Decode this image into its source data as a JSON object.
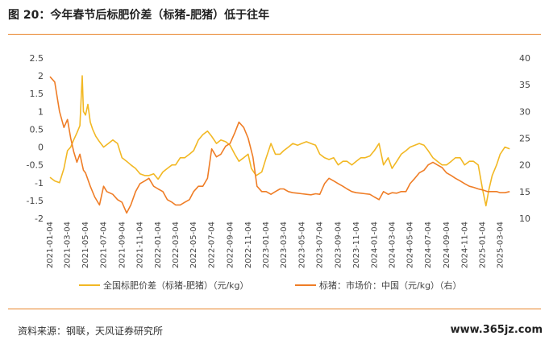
{
  "figure": {
    "title": "图 20：今年春节后标肥价差（标猪-肥猪）低于往年",
    "source": "资料来源：钢联，天风证券研究所",
    "watermark": "www.365jz.com"
  },
  "colors": {
    "accent": "#e8842a",
    "spread": "#f2b824",
    "price": "#ef7d26"
  },
  "chart_data": {
    "type": "line",
    "x_tick_labels": [
      "2021-01-04",
      "2021-03-04",
      "2021-05-04",
      "2021-07-04",
      "2021-09-04",
      "2021-11-04",
      "2022-01-04",
      "2022-03-04",
      "2022-05-04",
      "2022-07-04",
      "2022-09-04",
      "2022-11-04",
      "2023-01-04",
      "2023-03-04",
      "2023-05-04",
      "2023-07-04",
      "2023-09-04",
      "2023-11-04",
      "2024-01-04",
      "2024-03-04",
      "2024-05-04",
      "2024-07-04",
      "2024-09-04",
      "2024-11-04",
      "2025-01-04",
      "2025-03-04"
    ],
    "y_left": {
      "range": [
        -2,
        2.5
      ],
      "ticks": [
        "2.5",
        "2",
        "1.5",
        "1",
        "0.5",
        "0",
        "-0.5",
        "-1",
        "-1.5",
        "-2"
      ]
    },
    "y_right": {
      "range": [
        10,
        40
      ],
      "ticks": [
        "40",
        "35",
        "30",
        "25",
        "20",
        "15",
        "10"
      ]
    },
    "series": [
      {
        "name": "全国标肥价差（标猪-肥猪）（元/kg）",
        "axis": "left",
        "x": [
          "2021-01-04",
          "2021-01-20",
          "2021-02-05",
          "2021-02-20",
          "2021-03-04",
          "2021-03-15",
          "2021-03-25",
          "2021-04-05",
          "2021-04-15",
          "2021-04-23",
          "2021-04-27",
          "2021-05-04",
          "2021-05-12",
          "2021-05-20",
          "2021-05-28",
          "2021-06-08",
          "2021-06-20",
          "2021-07-04",
          "2021-07-20",
          "2021-08-04",
          "2021-08-20",
          "2021-09-04",
          "2021-09-20",
          "2021-10-04",
          "2021-10-20",
          "2021-11-04",
          "2021-11-20",
          "2021-12-04",
          "2021-12-20",
          "2022-01-04",
          "2022-01-20",
          "2022-02-04",
          "2022-02-20",
          "2022-03-04",
          "2022-03-20",
          "2022-04-04",
          "2022-04-20",
          "2022-05-04",
          "2022-05-20",
          "2022-06-04",
          "2022-06-20",
          "2022-07-04",
          "2022-07-20",
          "2022-08-04",
          "2022-08-20",
          "2022-09-04",
          "2022-09-20",
          "2022-10-04",
          "2022-10-20",
          "2022-11-04",
          "2022-11-15",
          "2022-12-01",
          "2022-12-20",
          "2023-01-04",
          "2023-01-20",
          "2023-02-04",
          "2023-02-20",
          "2023-03-04",
          "2023-03-20",
          "2023-04-04",
          "2023-04-20",
          "2023-05-04",
          "2023-05-20",
          "2023-06-04",
          "2023-06-20",
          "2023-07-04",
          "2023-07-20",
          "2023-08-04",
          "2023-08-20",
          "2023-09-04",
          "2023-09-20",
          "2023-10-04",
          "2023-10-20",
          "2023-11-04",
          "2023-11-20",
          "2023-12-04",
          "2023-12-20",
          "2024-01-04",
          "2024-01-20",
          "2024-02-04",
          "2024-02-20",
          "2024-03-04",
          "2024-03-20",
          "2024-04-04",
          "2024-04-20",
          "2024-05-04",
          "2024-05-20",
          "2024-06-04",
          "2024-06-20",
          "2024-07-04",
          "2024-07-20",
          "2024-08-04",
          "2024-08-20",
          "2024-09-04",
          "2024-09-20",
          "2024-10-04",
          "2024-10-20",
          "2024-11-04",
          "2024-11-20",
          "2024-12-04",
          "2024-12-20",
          "2025-01-04",
          "2025-01-15",
          "2025-01-25",
          "2025-02-05",
          "2025-02-20",
          "2025-03-04",
          "2025-03-20",
          "2025-04-05"
        ],
        "values": [
          -0.85,
          -0.95,
          -1.0,
          -0.6,
          -0.1,
          0.0,
          0.2,
          0.4,
          0.6,
          2.0,
          1.0,
          0.9,
          1.2,
          0.7,
          0.5,
          0.3,
          0.15,
          0.0,
          0.1,
          0.2,
          0.1,
          -0.3,
          -0.4,
          -0.5,
          -0.6,
          -0.75,
          -0.8,
          -0.8,
          -0.75,
          -0.9,
          -0.7,
          -0.6,
          -0.5,
          -0.5,
          -0.3,
          -0.3,
          -0.2,
          -0.1,
          0.2,
          0.35,
          0.45,
          0.3,
          0.1,
          0.2,
          0.15,
          0.05,
          -0.2,
          -0.4,
          -0.3,
          -0.2,
          -0.6,
          -0.8,
          -0.7,
          -0.3,
          0.1,
          -0.2,
          -0.2,
          -0.1,
          0.0,
          0.1,
          0.05,
          0.1,
          0.15,
          0.1,
          0.05,
          -0.2,
          -0.3,
          -0.35,
          -0.3,
          -0.5,
          -0.4,
          -0.4,
          -0.5,
          -0.4,
          -0.3,
          -0.3,
          -0.25,
          -0.1,
          0.1,
          -0.5,
          -0.3,
          -0.6,
          -0.4,
          -0.2,
          -0.1,
          0.0,
          0.05,
          0.1,
          0.05,
          -0.1,
          -0.3,
          -0.4,
          -0.5,
          -0.5,
          -0.4,
          -0.3,
          -0.3,
          -0.5,
          -0.4,
          -0.4,
          -0.5,
          -1.2,
          -1.65,
          -1.2,
          -0.8,
          -0.5,
          -0.2,
          0.0,
          -0.05
        ]
      },
      {
        "name": "标猪：市场价：中国（元/kg）（右）",
        "axis": "right",
        "x": [
          "2021-01-04",
          "2021-01-20",
          "2021-02-05",
          "2021-02-20",
          "2021-03-04",
          "2021-03-15",
          "2021-03-25",
          "2021-04-05",
          "2021-04-15",
          "2021-04-27",
          "2021-05-04",
          "2021-05-20",
          "2021-06-04",
          "2021-06-20",
          "2021-07-04",
          "2021-07-15",
          "2021-08-04",
          "2021-08-20",
          "2021-09-04",
          "2021-09-20",
          "2021-10-04",
          "2021-10-20",
          "2021-11-04",
          "2021-11-20",
          "2021-12-04",
          "2021-12-20",
          "2022-01-04",
          "2022-01-20",
          "2022-02-04",
          "2022-02-20",
          "2022-03-04",
          "2022-03-20",
          "2022-04-04",
          "2022-04-20",
          "2022-05-04",
          "2022-05-20",
          "2022-06-04",
          "2022-06-20",
          "2022-07-04",
          "2022-07-20",
          "2022-08-04",
          "2022-08-20",
          "2022-09-04",
          "2022-09-20",
          "2022-10-04",
          "2022-10-20",
          "2022-11-04",
          "2022-11-20",
          "2022-12-04",
          "2022-12-20",
          "2023-01-04",
          "2023-01-20",
          "2023-02-04",
          "2023-02-20",
          "2023-03-04",
          "2023-03-20",
          "2023-04-04",
          "2023-04-20",
          "2023-05-04",
          "2023-05-20",
          "2023-06-04",
          "2023-06-20",
          "2023-07-04",
          "2023-07-20",
          "2023-08-04",
          "2023-08-20",
          "2023-09-04",
          "2023-09-20",
          "2023-10-04",
          "2023-10-20",
          "2023-11-04",
          "2023-11-20",
          "2023-12-04",
          "2023-12-20",
          "2024-01-04",
          "2024-01-20",
          "2024-02-04",
          "2024-02-20",
          "2024-03-04",
          "2024-03-20",
          "2024-04-04",
          "2024-04-20",
          "2024-05-04",
          "2024-05-20",
          "2024-06-04",
          "2024-06-20",
          "2024-07-04",
          "2024-07-20",
          "2024-08-04",
          "2024-08-20",
          "2024-09-04",
          "2024-09-20",
          "2024-10-04",
          "2024-10-20",
          "2024-11-04",
          "2024-11-20",
          "2024-12-04",
          "2024-12-20",
          "2025-01-04",
          "2025-01-20",
          "2025-02-04",
          "2025-02-20",
          "2025-03-04",
          "2025-03-20",
          "2025-04-05"
        ],
        "values": [
          36.5,
          35.5,
          30.0,
          27.0,
          28.5,
          25.0,
          22.5,
          20.5,
          22.0,
          19.0,
          18.5,
          16.0,
          14.0,
          12.5,
          16.0,
          15.0,
          14.5,
          13.5,
          13.0,
          11.0,
          12.5,
          15.0,
          16.5,
          17.0,
          17.5,
          16.0,
          15.5,
          15.0,
          13.5,
          13.0,
          12.5,
          12.5,
          13.0,
          13.5,
          15.0,
          16.0,
          16.0,
          17.5,
          23.0,
          21.5,
          22.0,
          23.5,
          24.0,
          26.0,
          28.0,
          27.0,
          25.0,
          21.5,
          16.0,
          15.0,
          15.0,
          14.5,
          15.0,
          15.5,
          15.5,
          15.0,
          14.8,
          14.7,
          14.6,
          14.5,
          14.4,
          14.6,
          14.5,
          16.5,
          17.5,
          17.0,
          16.5,
          16.0,
          15.5,
          15.0,
          14.8,
          14.7,
          14.6,
          14.5,
          14.0,
          13.5,
          15.0,
          14.5,
          14.8,
          14.7,
          15.0,
          15.0,
          16.5,
          17.5,
          18.5,
          19.0,
          20.0,
          20.5,
          20.0,
          19.5,
          18.5,
          18.0,
          17.5,
          17.0,
          16.5,
          16.0,
          15.8,
          15.5,
          15.3,
          15.0,
          15.0,
          15.0,
          14.8,
          14.8,
          15.0
        ]
      }
    ],
    "legend_position": "bottom"
  }
}
